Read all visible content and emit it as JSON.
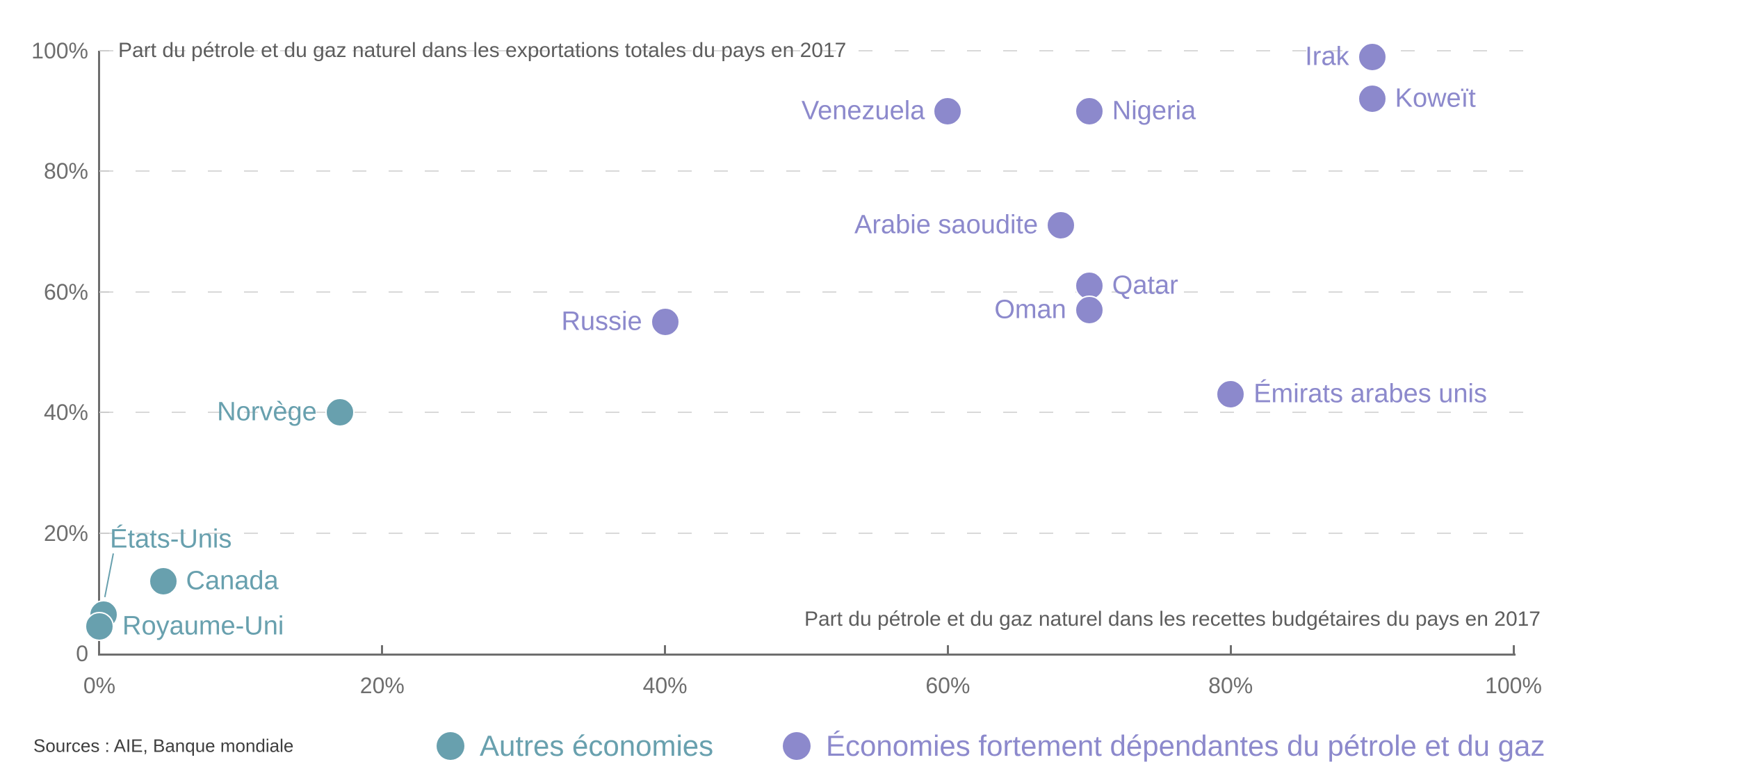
{
  "source": "Sources : AIE, Banque mondiale",
  "colors": {
    "other_economies": "#68A0AE",
    "oil_dependent": "#8C89CC",
    "grid": "#d9d9d9",
    "axis": "#6e6e6e",
    "tick_text": "#6e6e6e",
    "title_text": "#5d5d5d"
  },
  "chart_data": {
    "type": "scatter",
    "xlabel": "Part du pétrole et du gaz naturel dans les recettes budgétaires du pays en 2017",
    "ylabel": "Part du pétrole et du gaz naturel dans les exportations totales du pays en 2017",
    "xlim": [
      0,
      100
    ],
    "ylim": [
      0,
      100
    ],
    "grid": "horizontal-dashed",
    "legend_position": "bottom",
    "x_ticks": [
      {
        "value": 0,
        "label": "0%"
      },
      {
        "value": 20,
        "label": "20%"
      },
      {
        "value": 40,
        "label": "40%"
      },
      {
        "value": 60,
        "label": "60%"
      },
      {
        "value": 80,
        "label": "80%"
      },
      {
        "value": 100,
        "label": "100%"
      }
    ],
    "y_ticks": [
      {
        "value": 0,
        "label": "0"
      },
      {
        "value": 20,
        "label": "20%"
      },
      {
        "value": 40,
        "label": "40%"
      },
      {
        "value": 60,
        "label": "60%"
      },
      {
        "value": 80,
        "label": "80%"
      },
      {
        "value": 100,
        "label": "100%"
      }
    ],
    "series": [
      {
        "name": "Autres économies",
        "color": "#68A0AE",
        "points": [
          {
            "label": "Norvège",
            "x": 17,
            "y": 40,
            "label_side": "left"
          },
          {
            "label": "Canada",
            "x": 4.5,
            "y": 12,
            "label_side": "right"
          },
          {
            "label": "États-Unis",
            "x": 0.3,
            "y": 6.5,
            "label_side": "above",
            "leader_line": true
          },
          {
            "label": "Royaume-Uni",
            "x": 0,
            "y": 4.5,
            "label_side": "right"
          }
        ]
      },
      {
        "name": "Économies fortement dépendantes du pétrole et du gaz",
        "color": "#8C89CC",
        "points": [
          {
            "label": "Russie",
            "x": 40,
            "y": 55,
            "label_side": "left"
          },
          {
            "label": "Venezuela",
            "x": 60,
            "y": 90,
            "label_side": "left"
          },
          {
            "label": "Nigeria",
            "x": 70,
            "y": 90,
            "label_side": "right"
          },
          {
            "label": "Arabie saoudite",
            "x": 68,
            "y": 71,
            "label_side": "left"
          },
          {
            "label": "Qatar",
            "x": 70,
            "y": 61,
            "label_side": "right"
          },
          {
            "label": "Oman",
            "x": 70,
            "y": 57,
            "label_side": "left"
          },
          {
            "label": "Émirats arabes unis",
            "x": 80,
            "y": 43,
            "label_side": "right"
          },
          {
            "label": "Irak",
            "x": 90,
            "y": 99,
            "label_side": "left"
          },
          {
            "label": "Koweït",
            "x": 90,
            "y": 92,
            "label_side": "right"
          }
        ]
      }
    ]
  }
}
